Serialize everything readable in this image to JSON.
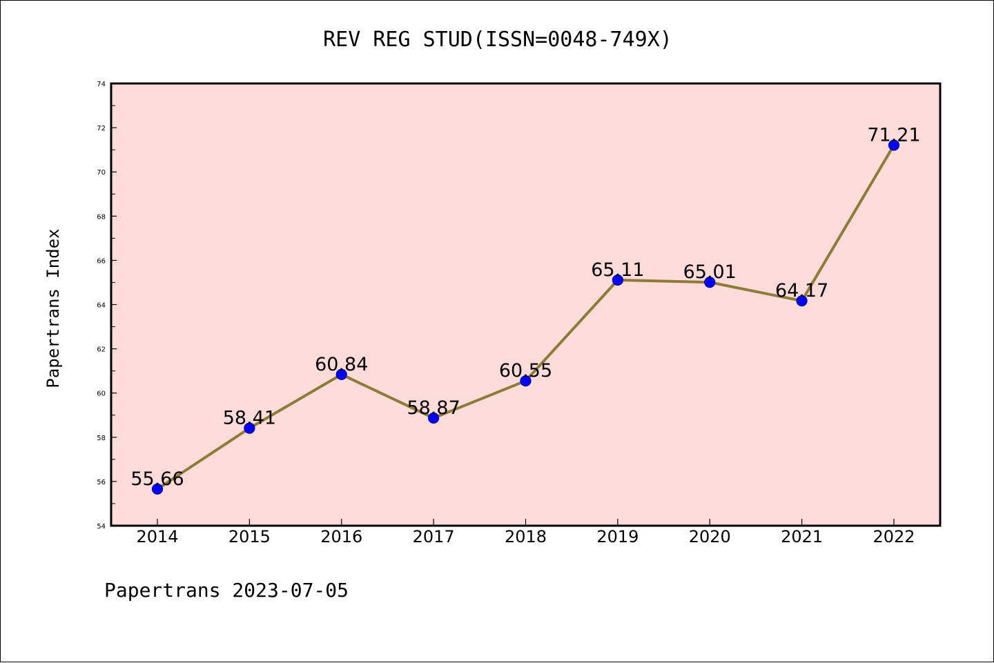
{
  "chart_data": {
    "type": "line",
    "title": "REV REG STUD(ISSN=0048-749X)",
    "xlabel": "",
    "ylabel": "Papertrans Index",
    "categories": [
      "2014",
      "2015",
      "2016",
      "2017",
      "2018",
      "2019",
      "2020",
      "2021",
      "2022"
    ],
    "series": [
      {
        "values": [
          55.66,
          58.41,
          60.84,
          58.87,
          60.55,
          65.11,
          65.01,
          64.17,
          71.21
        ]
      }
    ],
    "data_labels": [
      "55.66",
      "58.41",
      "60.84",
      "58.87",
      "60.55",
      "65.11",
      "65.01",
      "64.17",
      "71.21"
    ],
    "ylim": [
      54,
      74
    ],
    "y_ticks": [
      54,
      56,
      58,
      60,
      62,
      64,
      66,
      68,
      70,
      72,
      74
    ],
    "y_tick_labels": [
      "54",
      "56",
      "58",
      "60",
      "62",
      "64",
      "66",
      "68",
      "70",
      "72",
      "74"
    ],
    "grid": false,
    "legend": "none",
    "colors": {
      "plot_background": "#fddbd8",
      "line": "#8f7a3a",
      "marker_fill": "#0000ff",
      "marker_edge": "#00008b",
      "axes": "#000000"
    }
  },
  "footer": {
    "text": "Papertrans 2023-07-05"
  }
}
